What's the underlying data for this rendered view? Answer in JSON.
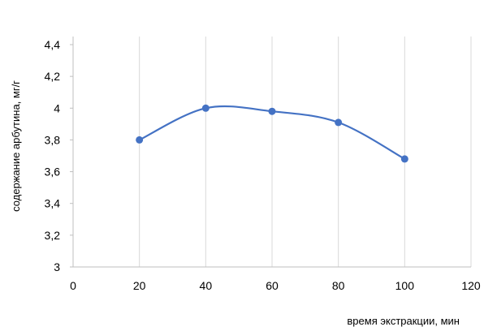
{
  "chart_data": {
    "type": "line",
    "smooth": true,
    "xlabel": "время экстракции, мин",
    "ylabel": "содержание арбутина, мг/г",
    "xlim": [
      0,
      120
    ],
    "ylim": [
      3,
      4.4
    ],
    "x_ticks": [
      0,
      20,
      40,
      60,
      80,
      100,
      120
    ],
    "y_ticks": [
      3,
      3.2,
      3.4,
      3.6,
      3.8,
      4,
      4.2,
      4.4
    ],
    "x_tick_labels": [
      "0",
      "20",
      "40",
      "60",
      "80",
      "100",
      "120"
    ],
    "y_tick_labels": [
      "3",
      "3,2",
      "3,4",
      "3,6",
      "3,8",
      "4",
      "4,2",
      "4,4"
    ],
    "grid": "vertical",
    "series": [
      {
        "color": "#4472c4",
        "x": [
          20,
          40,
          60,
          80,
          100
        ],
        "y": [
          3.8,
          4.0,
          3.98,
          3.91,
          3.68
        ]
      }
    ]
  }
}
